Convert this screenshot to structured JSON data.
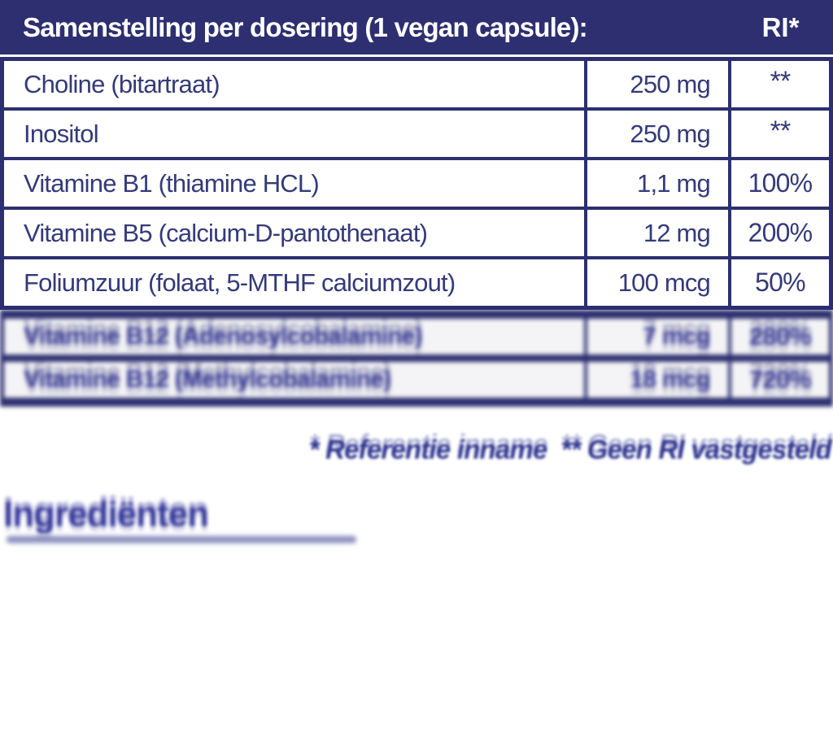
{
  "colors": {
    "navy": "#2d2f70",
    "row_text": "#343a79",
    "ghost_blue": "#2e3190",
    "background": "#ffffff"
  },
  "header": {
    "title": "Samenstelling per dosering (1 vegan capsule):",
    "ri_label": "RI*"
  },
  "table": {
    "rows": [
      {
        "name": "Choline (bitartraat)",
        "amount": "250 mg",
        "ri": "**"
      },
      {
        "name": "Inositol",
        "amount": "250 mg",
        "ri": "**"
      },
      {
        "name": "Vitamine B1 (thiamine HCL)",
        "amount": "1,1 mg",
        "ri": "100%"
      },
      {
        "name": "Vitamine B5 (calcium-D-pantothenaat)",
        "amount": "12 mg",
        "ri": "200%"
      },
      {
        "name": "Foliumzuur (folaat, 5-MTHF calciumzout)",
        "amount": "100 mcg",
        "ri": "50%"
      },
      {
        "name": "Vitamine B12 (Adenosylcobalamine)",
        "amount": "7 mcg",
        "ri": "280%"
      },
      {
        "name": "Vitamine B12 (Methylcobalamine)",
        "amount": "18 mcg",
        "ri": "720%"
      }
    ]
  },
  "footnote": "* Referentie inname  ** Geen RI vastgesteld",
  "ingredients_heading": "Ingrediënten"
}
